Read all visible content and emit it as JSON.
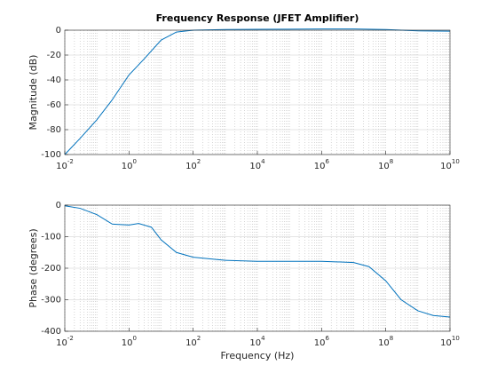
{
  "chart_data": [
    {
      "type": "line",
      "title": "Frequency Response (JFET Amplifier)",
      "ylabel": "Magnitude (dB)",
      "xscale": "log",
      "grid": true,
      "x": [
        0.01,
        0.03,
        0.1,
        0.3,
        1,
        3,
        10,
        30,
        100,
        1000,
        10000,
        100000,
        1000000,
        10000000,
        100000000,
        1000000000,
        10000000000
      ],
      "series": [
        {
          "name": "Magnitude",
          "color": "#0072bd",
          "values": [
            -100,
            -87,
            -72,
            -56,
            -36,
            -23,
            -8,
            -1.5,
            0,
            0.5,
            0.7,
            0.8,
            1,
            1,
            0.5,
            -0.5,
            -0.8
          ]
        }
      ],
      "xlim": [
        0.01,
        10000000000
      ],
      "xticks": [
        {
          "value": 0.01,
          "label": "10",
          "exponent": "-2"
        },
        {
          "value": 1,
          "label": "10",
          "exponent": "0"
        },
        {
          "value": 100,
          "label": "10",
          "exponent": "2"
        },
        {
          "value": 10000,
          "label": "10",
          "exponent": "4"
        },
        {
          "value": 1000000,
          "label": "10",
          "exponent": "6"
        },
        {
          "value": 100000000,
          "label": "10",
          "exponent": "8"
        },
        {
          "value": 10000000000,
          "label": "10",
          "exponent": "10"
        }
      ],
      "ylim": [
        -100,
        0
      ],
      "yticks": [
        -100,
        -80,
        -60,
        -40,
        -20,
        0
      ]
    },
    {
      "type": "line",
      "xlabel": "Frequency (Hz)",
      "ylabel": "Phase (degrees)",
      "xscale": "log",
      "grid": true,
      "x": [
        0.01,
        0.03,
        0.1,
        0.3,
        1,
        2,
        5,
        10,
        30,
        100,
        1000,
        10000,
        100000,
        1000000,
        10000000,
        30000000,
        100000000,
        300000000,
        1000000000,
        3000000000,
        10000000000
      ],
      "series": [
        {
          "name": "Phase",
          "color": "#0072bd",
          "values": [
            -2,
            -10,
            -30,
            -60,
            -63,
            -58,
            -70,
            -110,
            -150,
            -165,
            -175,
            -178,
            -178,
            -178,
            -182,
            -195,
            -240,
            -300,
            -335,
            -350,
            -355
          ]
        }
      ],
      "xlim": [
        0.01,
        10000000000
      ],
      "xticks": [
        {
          "value": 0.01,
          "label": "10",
          "exponent": "-2"
        },
        {
          "value": 1,
          "label": "10",
          "exponent": "0"
        },
        {
          "value": 100,
          "label": "10",
          "exponent": "2"
        },
        {
          "value": 10000,
          "label": "10",
          "exponent": "4"
        },
        {
          "value": 1000000,
          "label": "10",
          "exponent": "6"
        },
        {
          "value": 100000000,
          "label": "10",
          "exponent": "8"
        },
        {
          "value": 10000000000,
          "label": "10",
          "exponent": "10"
        }
      ],
      "ylim": [
        -400,
        0
      ],
      "yticks": [
        -400,
        -300,
        -200,
        -100,
        0
      ]
    }
  ]
}
